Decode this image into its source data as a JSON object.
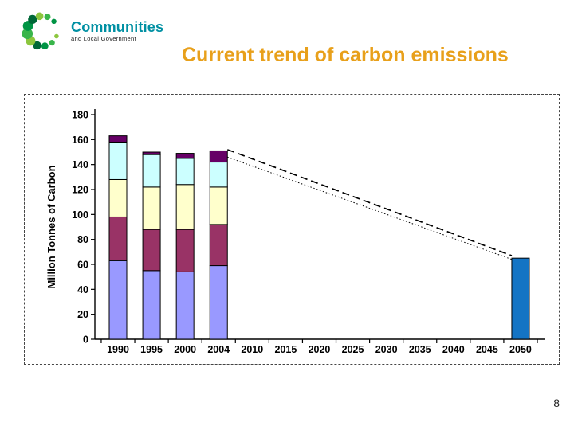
{
  "page": {
    "title": "Current trend of carbon emissions",
    "title_color": "#E8A01B",
    "page_number": "8",
    "background": "#FFFFFF"
  },
  "logo": {
    "line1": "Communities",
    "line2": "and Local Government",
    "text_color": "#0090A3",
    "dot_colors": [
      "#8CC63E",
      "#39B54A",
      "#009444",
      "#006838"
    ]
  },
  "chart_data": {
    "type": "bar",
    "stacked": true,
    "title": "",
    "xlabel": "",
    "ylabel": "Million Tonnes of Carbon",
    "ylim": [
      0,
      180
    ],
    "ytick_step": 20,
    "grid": false,
    "legend": "none",
    "categories": [
      "1990",
      "1995",
      "2000",
      "2004",
      "2010",
      "2015",
      "2020",
      "2025",
      "2030",
      "2035",
      "2040",
      "2045",
      "2050"
    ],
    "series": [
      {
        "name": "series-periwinkle",
        "color": "#9999FF",
        "values": [
          63,
          55,
          54,
          59,
          0,
          0,
          0,
          0,
          0,
          0,
          0,
          0,
          0
        ]
      },
      {
        "name": "series-maroon",
        "color": "#993366",
        "values": [
          35,
          33,
          34,
          33,
          0,
          0,
          0,
          0,
          0,
          0,
          0,
          0,
          0
        ]
      },
      {
        "name": "series-cream",
        "color": "#FFFFCC",
        "values": [
          30,
          34,
          36,
          30,
          0,
          0,
          0,
          0,
          0,
          0,
          0,
          0,
          0
        ]
      },
      {
        "name": "series-cyan",
        "color": "#CCFFFF",
        "values": [
          30,
          26,
          21,
          20,
          0,
          0,
          0,
          0,
          0,
          0,
          0,
          0,
          0
        ]
      },
      {
        "name": "series-darkpurple",
        "color": "#660066",
        "values": [
          5,
          2,
          4,
          9,
          0,
          0,
          0,
          0,
          0,
          0,
          0,
          0,
          0
        ]
      }
    ],
    "projection_bar": {
      "category": "2050",
      "value": 65,
      "color": "#1474C4"
    },
    "trend_lines": [
      {
        "style": "dashed",
        "from": {
          "category": "2004",
          "value": 152
        },
        "to": {
          "category": "2050",
          "value": 67
        }
      },
      {
        "style": "dotted",
        "from": {
          "category": "2004",
          "value": 146
        },
        "to": {
          "category": "2050",
          "value": 64
        }
      }
    ]
  }
}
